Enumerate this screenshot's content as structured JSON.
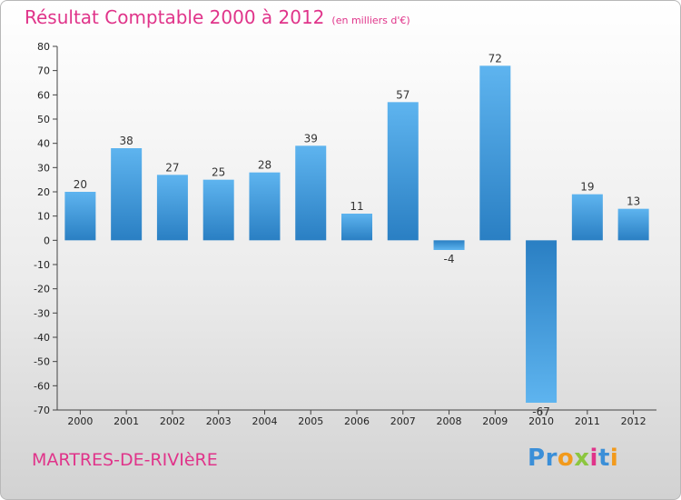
{
  "header": {
    "title": "Résultat Comptable 2000 à 2012",
    "subtitle": "(en milliers d'€)"
  },
  "footer": {
    "commune": "MARTRES-DE-RIVIèRE",
    "logo_text": "Proxiti",
    "logo_letters": [
      {
        "char": "P",
        "color": "#3b8fd8"
      },
      {
        "char": "r",
        "color": "#3b8fd8"
      },
      {
        "char": "o",
        "color": "#f29a1c"
      },
      {
        "char": "x",
        "color": "#8cc63f"
      },
      {
        "char": "i",
        "color": "#e0348a"
      },
      {
        "char": "t",
        "color": "#3b8fd8"
      },
      {
        "char": "i",
        "color": "#f29a1c"
      }
    ]
  },
  "colors": {
    "accent": "#e0348a",
    "bar_light": "#5eb4ef",
    "bar_dark": "#2a7fc3"
  },
  "chart_data": {
    "type": "bar",
    "title": "Résultat Comptable 2000 à 2012",
    "subtitle": "(en milliers d'€)",
    "categories": [
      "2000",
      "2001",
      "2002",
      "2003",
      "2004",
      "2005",
      "2006",
      "2007",
      "2008",
      "2009",
      "2010",
      "2011",
      "2012"
    ],
    "values": [
      20,
      38,
      27,
      25,
      28,
      39,
      11,
      57,
      -4,
      72,
      -67,
      19,
      13
    ],
    "ylim": [
      -70,
      80
    ],
    "yticks": [
      80,
      70,
      60,
      50,
      40,
      30,
      20,
      10,
      0,
      -10,
      -20,
      -30,
      -40,
      -50,
      -60,
      -70
    ],
    "ytick_labels": [
      "80",
      "70",
      "60",
      "50",
      "40",
      "30",
      "20",
      "10",
      "0",
      "-10",
      "-20",
      "-30",
      "-40",
      "-50",
      "-60",
      "-70"
    ],
    "xlabel": "",
    "ylabel": "",
    "grid": false
  }
}
